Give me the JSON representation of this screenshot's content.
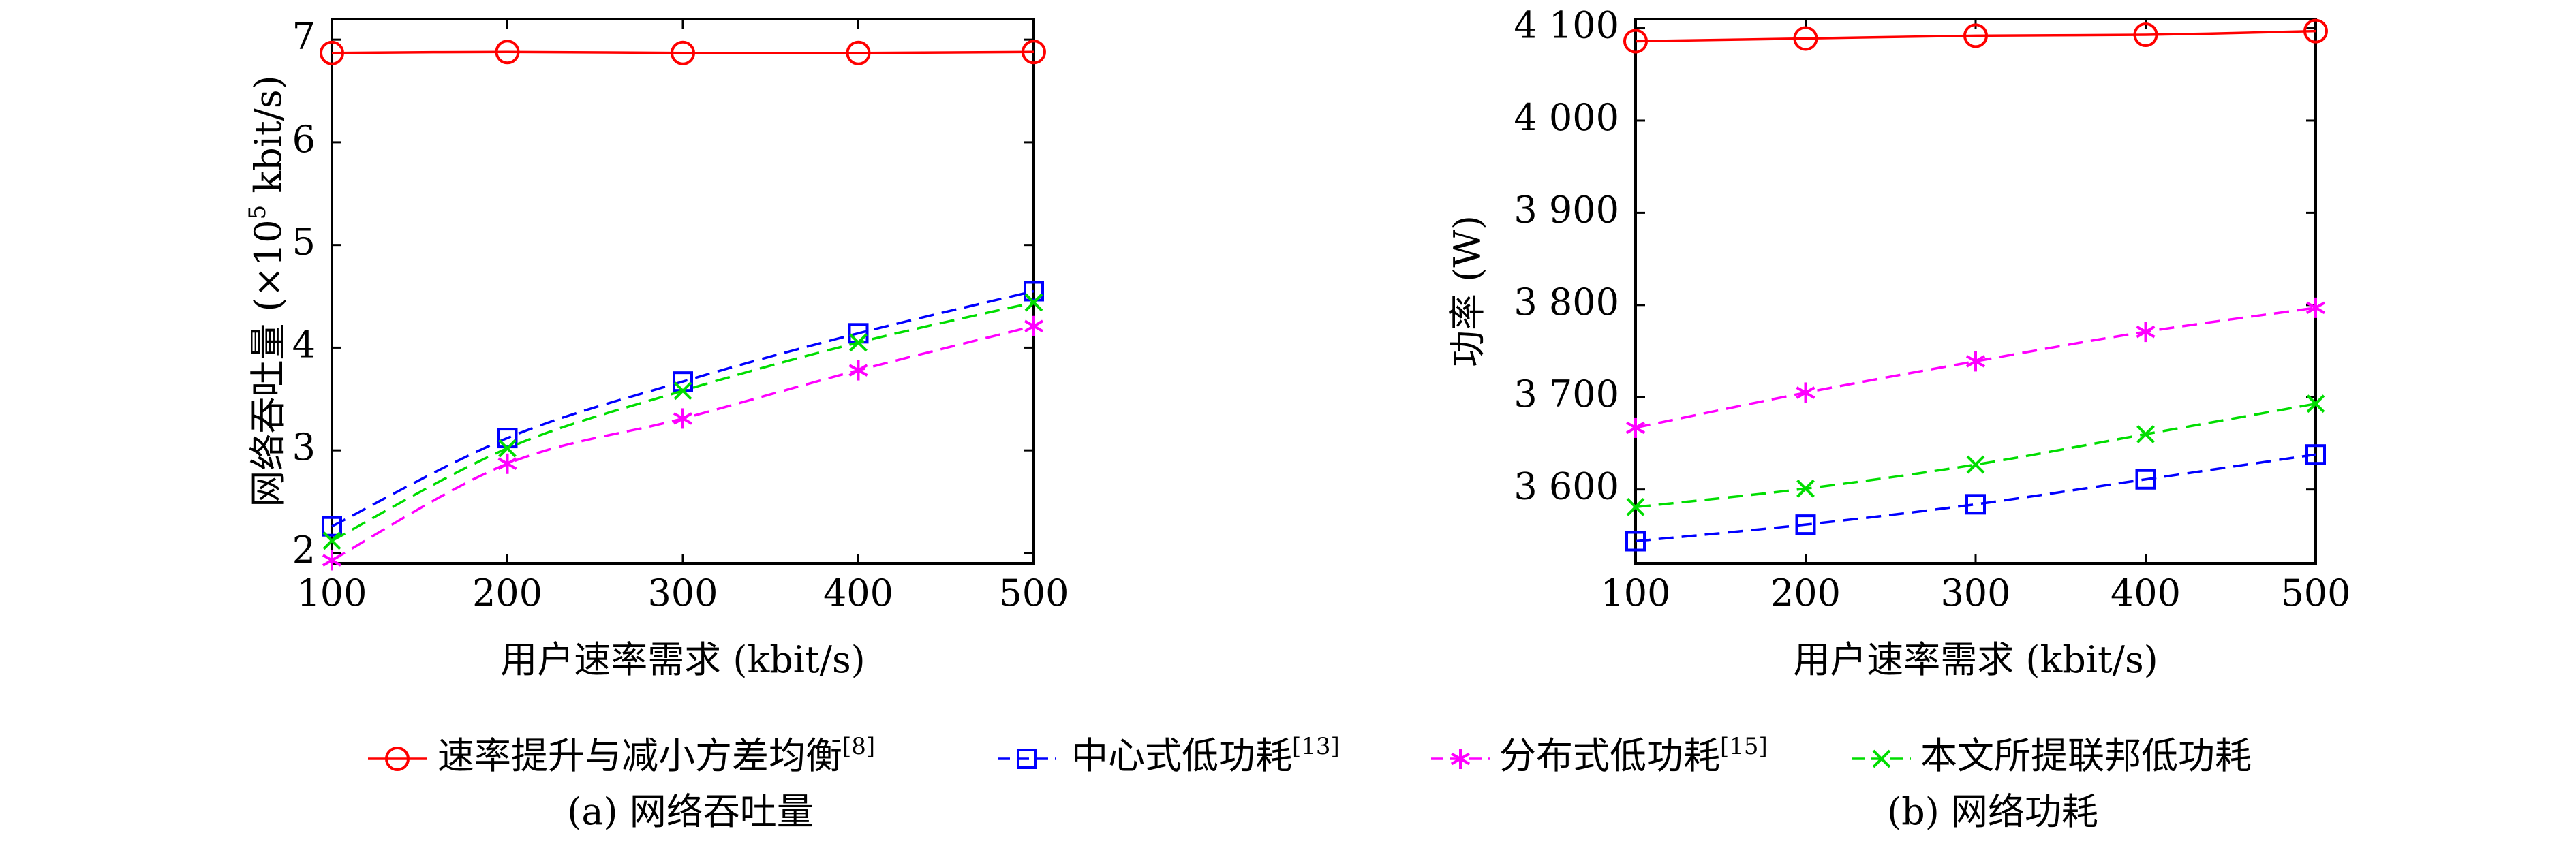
{
  "chart_data": [
    {
      "type": "line",
      "caption": "(a) 网络吞吐量",
      "xlabel": "用户速率需求 (kbit/s)",
      "ylabel_prefix": "网络吞吐量 (×10",
      "ylabel_exp": "5",
      "ylabel_suffix": " kbit/s)",
      "x": [
        100,
        200,
        300,
        400,
        500
      ],
      "xlim": [
        100,
        500
      ],
      "ylim": [
        1.9,
        7.2
      ],
      "xticks": [
        100,
        200,
        300,
        400,
        500
      ],
      "xtick_labels": [
        "100",
        "200",
        "300",
        "400",
        "500"
      ],
      "yticks": [
        2,
        3,
        4,
        5,
        6,
        7
      ],
      "ytick_labels": [
        "2",
        "3",
        "4",
        "5",
        "6",
        "7"
      ],
      "series": [
        {
          "name": "速率提升与减小方差均衡",
          "values": [
            6.87,
            6.88,
            6.87,
            6.87,
            6.88
          ]
        },
        {
          "name": "中心式低功耗",
          "values": [
            2.26,
            3.12,
            3.67,
            4.14,
            4.55
          ]
        },
        {
          "name": "分布式低功耗",
          "values": [
            1.93,
            2.87,
            3.31,
            3.78,
            4.21
          ]
        },
        {
          "name": "本文所提联邦低功耗",
          "values": [
            2.12,
            3.02,
            3.58,
            4.05,
            4.44
          ]
        }
      ]
    },
    {
      "type": "line",
      "caption": "(b) 网络功耗",
      "xlabel": "用户速率需求 (kbit/s)",
      "ylabel": "功率 (W)",
      "x": [
        100,
        200,
        300,
        400,
        500
      ],
      "xlim": [
        100,
        500
      ],
      "ylim": [
        3520,
        4110
      ],
      "xticks": [
        100,
        200,
        300,
        400,
        500
      ],
      "xtick_labels": [
        "100",
        "200",
        "300",
        "400",
        "500"
      ],
      "yticks": [
        3600,
        3700,
        3800,
        3900,
        4000,
        4100
      ],
      "ytick_labels": [
        "3 600",
        "3 700",
        "3 800",
        "3 900",
        "4 000",
        "4 100"
      ],
      "series": [
        {
          "name": "速率提升与减小方差均衡",
          "values": [
            4086,
            4089,
            4092,
            4093,
            4097
          ]
        },
        {
          "name": "中心式低功耗",
          "values": [
            3544,
            3562,
            3584,
            3611,
            3638
          ]
        },
        {
          "name": "分布式低功耗",
          "values": [
            3667,
            3705,
            3739,
            3771,
            3797
          ]
        },
        {
          "name": "本文所提联邦低功耗",
          "values": [
            3581,
            3601,
            3627,
            3660,
            3693
          ]
        }
      ]
    }
  ],
  "legend": {
    "placement": "bottom",
    "items": [
      {
        "label": "速率提升与减小方差均衡",
        "ref": "[8]",
        "color": "#ff0000",
        "marker": "circle",
        "dash": "solid"
      },
      {
        "label": "中心式低功耗",
        "ref": "[13]",
        "color": "#0000ff",
        "marker": "square",
        "dash": "dashed"
      },
      {
        "label": "分布式低功耗",
        "ref": "[15]",
        "color": "#ff00ff",
        "marker": "asterisk",
        "dash": "dashed"
      },
      {
        "label": "本文所提联邦低功耗",
        "ref": "",
        "color": "#00dd00",
        "marker": "cross",
        "dash": "dashed"
      }
    ]
  }
}
